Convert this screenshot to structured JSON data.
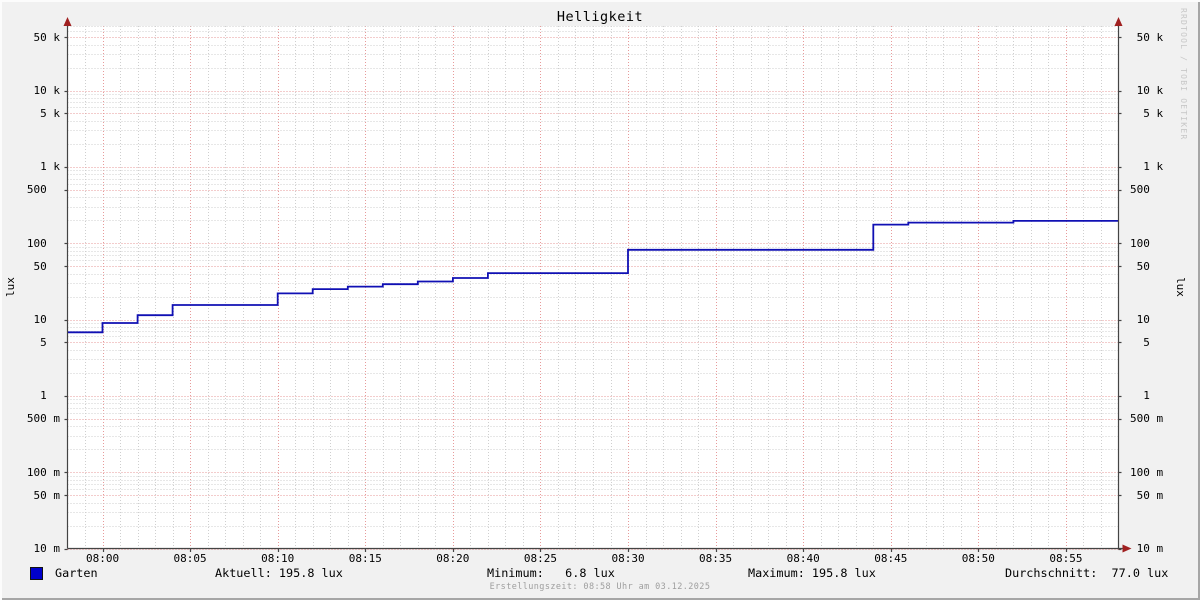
{
  "title": "Helligkeit",
  "watermark": "RRDTOOL / TOBI OETIKER",
  "footer": "Erstellungszeit: 08:58 Uhr am 03.12.2025",
  "legend": {
    "name": "Garten",
    "swatch_color": "#0000CC"
  },
  "stats": {
    "aktuell": "Aktuell: 195.8 lux",
    "minimum": "Minimum:   6.8 lux",
    "maximum": "Maximum: 195.8 lux",
    "durchschnitt": "Durchschnitt:  77.0 lux"
  },
  "y_axis": {
    "unit_left": "lux",
    "unit_right": "lux"
  },
  "colors": {
    "line": "#1010B4",
    "legend_swatch": "#0000CC",
    "major_grid": "#E79A9A",
    "minor_grid": "#CFCFCF",
    "axis": "#444444",
    "arrow": "#A02020",
    "background": "#F1F1F1",
    "canvas": "#FFFFFF"
  },
  "chart_data": {
    "type": "line",
    "title": "Helligkeit",
    "ylabel": "lux",
    "y_scale": "logarithmic",
    "ylim": [
      0.01,
      60000
    ],
    "x_start": "07:58",
    "x_end": "08:58",
    "grid": "on",
    "legend_position": "bottom-left",
    "y_ticks": [
      {
        "label": " 50 k",
        "value": 50000
      },
      {
        "label": " 10 k",
        "value": 10000
      },
      {
        "label": "  5 k",
        "value": 5000
      },
      {
        "label": "  1 k",
        "value": 1000
      },
      {
        "label": "500  ",
        "value": 500
      },
      {
        "label": "100  ",
        "value": 100
      },
      {
        "label": " 50  ",
        "value": 50
      },
      {
        "label": " 10  ",
        "value": 10
      },
      {
        "label": "  5  ",
        "value": 5
      },
      {
        "label": "  1  ",
        "value": 1
      },
      {
        "label": "500 m",
        "value": 0.5
      },
      {
        "label": "100 m",
        "value": 0.1
      },
      {
        "label": " 50 m",
        "value": 0.05
      },
      {
        "label": " 10 m",
        "value": 0.01
      }
    ],
    "x_ticks": [
      "08:00",
      "08:05",
      "08:10",
      "08:15",
      "08:20",
      "08:25",
      "08:30",
      "08:35",
      "08:40",
      "08:45",
      "08:50",
      "08:55"
    ],
    "series": [
      {
        "name": "Garten",
        "color": "#1010B4",
        "interpolation": "step-after",
        "points": [
          [
            "07:58",
            6.8
          ],
          [
            "08:00",
            9.0
          ],
          [
            "08:02",
            11.4
          ],
          [
            "08:04",
            15.5
          ],
          [
            "08:10",
            22.0
          ],
          [
            "08:12",
            25.0
          ],
          [
            "08:14",
            27.0
          ],
          [
            "08:16",
            29.0
          ],
          [
            "08:18",
            31.5
          ],
          [
            "08:20",
            35.0
          ],
          [
            "08:22",
            40.5
          ],
          [
            "08:30",
            82.0
          ],
          [
            "08:44",
            175.0
          ],
          [
            "08:46",
            186.0
          ],
          [
            "08:52",
            195.8
          ],
          [
            "08:58",
            195.8
          ]
        ]
      }
    ]
  }
}
